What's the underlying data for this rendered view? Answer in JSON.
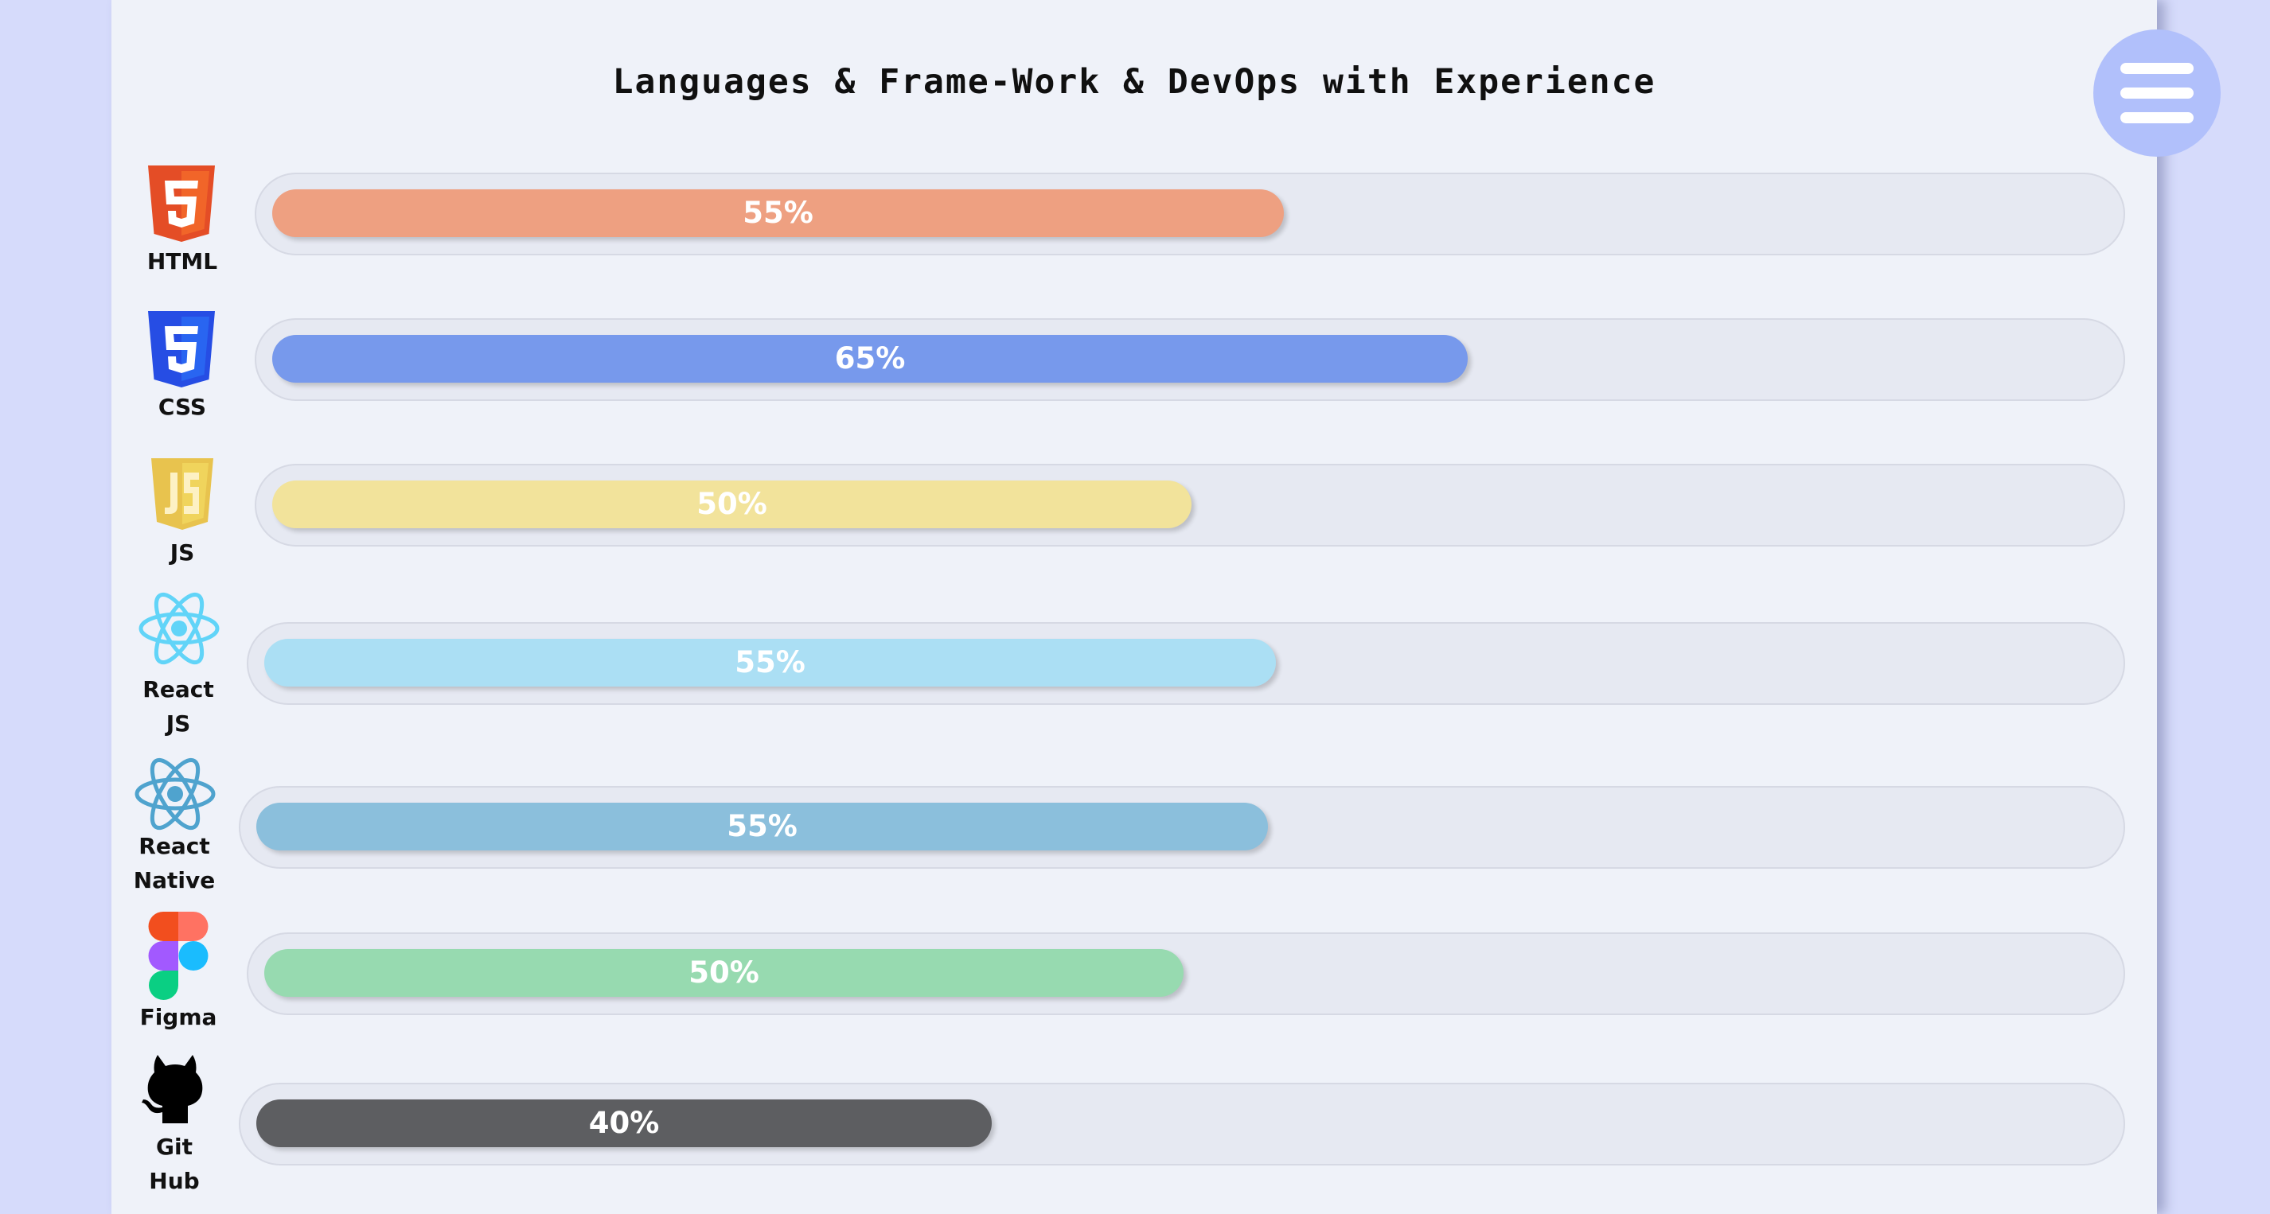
{
  "page": {
    "title": "Languages & Frame-Work & DevOps with Experience",
    "background": "#d6dbfb",
    "panel_color": "#eff2f9"
  },
  "menu": {
    "icon": "hamburger-menu-icon",
    "color": "#b1c0fb"
  },
  "skills": [
    {
      "name": "HTML",
      "percent": 55,
      "label": "55%",
      "icon": "html5-icon",
      "color": "#eea081"
    },
    {
      "name": "CSS",
      "percent": 65,
      "label": "65%",
      "icon": "css3-icon",
      "color": "#7799ec"
    },
    {
      "name": "JS",
      "percent": 50,
      "label": "50%",
      "icon": "javascript-icon",
      "color": "#f2e39b"
    },
    {
      "name": "React\nJS",
      "percent": 55,
      "label": "55%",
      "icon": "react-icon",
      "color": "#abdff4"
    },
    {
      "name": "React\nNative",
      "percent": 55,
      "label": "55%",
      "icon": "react-icon",
      "color": "#8bbfdc"
    },
    {
      "name": "Figma",
      "percent": 50,
      "label": "50%",
      "icon": "figma-icon",
      "color": "#97dab0"
    },
    {
      "name": "Git\nHub",
      "percent": 40,
      "label": "40%",
      "icon": "github-icon",
      "color": "#5d5e61"
    }
  ]
}
